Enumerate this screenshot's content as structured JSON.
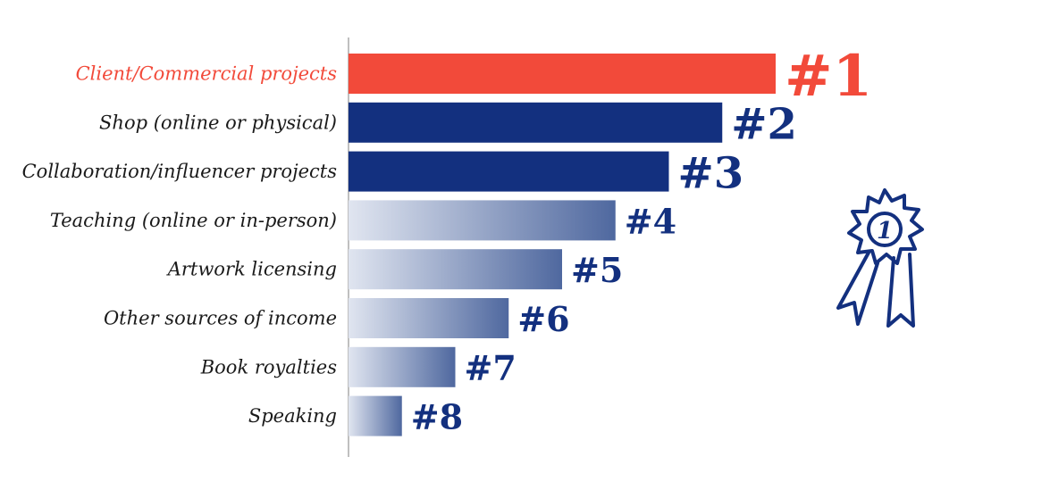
{
  "chart_data": {
    "type": "bar",
    "orientation": "horizontal",
    "title": "",
    "xlabel": "",
    "ylabel": "",
    "categories": [
      "Client/Commercial projects",
      "Shop (online or physical)",
      "Collaboration/influencer projects",
      "Teaching (online or in-person)",
      "Artwork licensing",
      "Other sources of income",
      "Book royalties",
      "Speaking"
    ],
    "values": [
      8,
      7,
      6,
      5,
      4,
      3,
      2,
      1
    ],
    "rank_labels": [
      "#1",
      "#2",
      "#3",
      "#4",
      "#5",
      "#6",
      "#7",
      "#8"
    ],
    "xlim": [
      0,
      8
    ],
    "grid": false,
    "legend": "none"
  },
  "colors": {
    "highlight": "#f24a3a",
    "primary": "#13307f",
    "gradient_start": "#e0e5f0",
    "gradient_end": "#4f689f",
    "axis": "#aaaaaa"
  },
  "badge": {
    "icon": "first-place-ribbon-icon",
    "text": "1"
  }
}
